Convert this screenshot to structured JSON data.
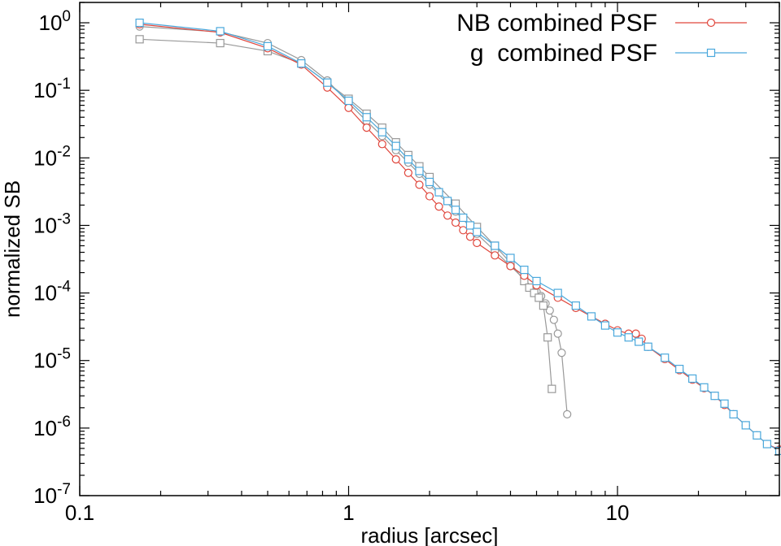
{
  "chart_data": {
    "type": "line",
    "title": "",
    "xlabel": "radius [arcsec]",
    "ylabel": "normalized SB",
    "x_scale": "log",
    "y_scale": "log",
    "xlim": [
      0.1,
      40
    ],
    "ylim": [
      1e-07,
      2
    ],
    "x_ticks": [
      {
        "value": 0.1,
        "label": "0.1"
      },
      {
        "value": 1,
        "label": "1"
      },
      {
        "value": 10,
        "label": "10"
      }
    ],
    "y_ticks": [
      {
        "value": 1,
        "base": "10",
        "exp": "0"
      },
      {
        "value": 0.1,
        "base": "10",
        "exp": "-1"
      },
      {
        "value": 0.01,
        "base": "10",
        "exp": "-2"
      },
      {
        "value": 0.001,
        "base": "10",
        "exp": "-3"
      },
      {
        "value": 0.0001,
        "base": "10",
        "exp": "-4"
      },
      {
        "value": 1e-05,
        "base": "10",
        "exp": "-5"
      },
      {
        "value": 1e-06,
        "base": "10",
        "exp": "-6"
      },
      {
        "value": 1e-07,
        "base": "10",
        "exp": "-7"
      }
    ],
    "grid": false,
    "legend_position": "top-right",
    "series": [
      {
        "name": "NB combined PSF",
        "color": "#e0463c",
        "marker": "circle",
        "in_legend": true,
        "x": [
          0.167,
          0.333,
          0.5,
          0.667,
          0.833,
          1.0,
          1.167,
          1.333,
          1.5,
          1.667,
          1.833,
          2.0,
          2.167,
          2.333,
          2.5,
          2.667,
          2.833,
          3.0,
          3.5,
          4.0,
          4.5,
          5.0,
          6.0,
          7.0,
          8.0,
          9.0,
          10.0,
          11.0,
          11.7,
          12.3,
          13.0,
          15.0,
          17.0,
          19.0,
          21.0,
          23.0,
          25.0,
          27.0,
          30.0,
          33.0,
          36.0,
          40.0
        ],
        "y": [
          0.95,
          0.72,
          0.42,
          0.24,
          0.11,
          0.055,
          0.028,
          0.016,
          0.0095,
          0.006,
          0.004,
          0.0027,
          0.0019,
          0.0014,
          0.0011,
          0.00085,
          0.00068,
          0.00055,
          0.00036,
          0.00025,
          0.00018,
          0.00013,
          8.5e-05,
          6e-05,
          4.5e-05,
          3.5e-05,
          2.8e-05,
          2.5e-05,
          2.5e-05,
          2.1e-05,
          1.6e-05,
          1.05e-05,
          7.2e-06,
          5.2e-06,
          3.9e-06,
          3e-06,
          2.2e-06,
          1.6e-06,
          1.1e-06,
          7.8e-07,
          5.8e-07,
          4.8e-07
        ]
      },
      {
        "name": "g  combined PSF",
        "color": "#4aa8dc",
        "marker": "square",
        "in_legend": true,
        "x": [
          0.167,
          0.333,
          0.5,
          0.667,
          0.833,
          1.0,
          1.167,
          1.333,
          1.5,
          1.667,
          1.833,
          2.0,
          2.167,
          2.333,
          2.5,
          2.667,
          2.833,
          3.0,
          3.5,
          4.0,
          4.5,
          5.0,
          6.0,
          7.0,
          8.0,
          9.0,
          10.0,
          11.0,
          12.0,
          13.0,
          15.0,
          17.0,
          19.0,
          21.0,
          23.0,
          25.0,
          27.0,
          30.0,
          33.0,
          36.0,
          40.0
        ],
        "y": [
          1.0,
          0.75,
          0.45,
          0.25,
          0.13,
          0.07,
          0.04,
          0.024,
          0.015,
          0.0095,
          0.0064,
          0.0044,
          0.0031,
          0.0023,
          0.0017,
          0.0013,
          0.001,
          0.0008,
          0.0005,
          0.00033,
          0.00022,
          0.00015,
          0.0001,
          6.5e-05,
          4.5e-05,
          3.3e-05,
          2.6e-05,
          2.2e-05,
          1.9e-05,
          1.6e-05,
          1.1e-05,
          7.5e-06,
          5.4e-06,
          4e-06,
          3e-06,
          2.3e-06,
          1.6e-06,
          1.1e-06,
          7.8e-07,
          5.8e-07,
          4.6e-07
        ]
      },
      {
        "name": "",
        "color": "#999999",
        "marker": "circle",
        "in_legend": false,
        "x": [
          0.167,
          0.333,
          0.5,
          0.667,
          0.833,
          1.0,
          1.167,
          1.333,
          1.5,
          1.667,
          1.833,
          2.0,
          2.5,
          3.0,
          3.5,
          4.0,
          4.5,
          5.0,
          5.2,
          5.4,
          5.6,
          5.8,
          6.0,
          6.2,
          6.5
        ],
        "y": [
          0.88,
          0.73,
          0.5,
          0.28,
          0.14,
          0.065,
          0.035,
          0.021,
          0.013,
          0.0085,
          0.0058,
          0.004,
          0.0016,
          0.00075,
          0.00042,
          0.00025,
          0.00016,
          0.000105,
          9e-05,
          7e-05,
          5.5e-05,
          4e-05,
          2.5e-05,
          1.3e-05,
          1.6e-06
        ]
      },
      {
        "name": "",
        "color": "#999999",
        "marker": "square",
        "in_legend": false,
        "x": [
          0.167,
          0.333,
          0.5,
          0.667,
          0.833,
          1.0,
          1.167,
          1.333,
          1.5,
          1.667,
          1.833,
          2.0,
          2.5,
          3.0,
          3.5,
          4.0,
          4.5,
          4.7,
          4.9,
          5.1,
          5.3,
          5.5,
          5.7
        ],
        "y": [
          0.57,
          0.5,
          0.38,
          0.25,
          0.13,
          0.075,
          0.045,
          0.028,
          0.017,
          0.011,
          0.0075,
          0.0052,
          0.0021,
          0.00095,
          0.0005,
          0.00028,
          0.00015,
          0.00012,
          0.0001,
          8.5e-05,
          6.5e-05,
          2.2e-05,
          3.8e-06
        ]
      }
    ]
  }
}
